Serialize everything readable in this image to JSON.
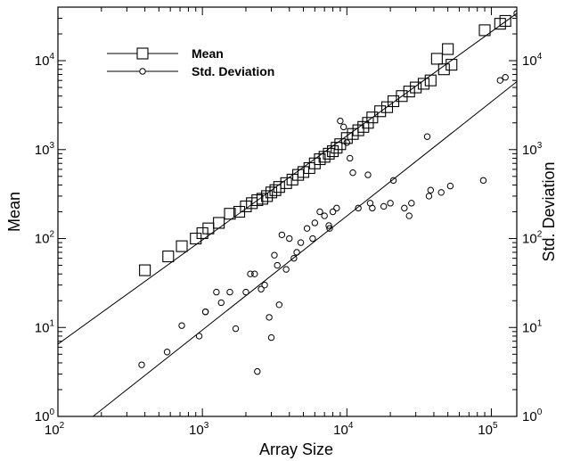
{
  "chart_data": {
    "type": "scatter",
    "x_scale": "log",
    "y_scale": "log",
    "xlabel": "Array Size",
    "ylabel_left": "Mean",
    "ylabel_right": "Std. Deviation",
    "xlim": [
      100,
      150000
    ],
    "ylim": [
      1,
      40000
    ],
    "x_ticks": [
      {
        "value": 100,
        "base": "10",
        "exp": "2"
      },
      {
        "value": 1000,
        "base": "10",
        "exp": "3"
      },
      {
        "value": 10000,
        "base": "10",
        "exp": "4"
      },
      {
        "value": 100000,
        "base": "10",
        "exp": "5"
      }
    ],
    "y_ticks": [
      {
        "value": 1,
        "base": "10",
        "exp": "0"
      },
      {
        "value": 10,
        "base": "10",
        "exp": "1"
      },
      {
        "value": 100,
        "base": "10",
        "exp": "2"
      },
      {
        "value": 1000,
        "base": "10",
        "exp": "3"
      },
      {
        "value": 10000,
        "base": "10",
        "exp": "4"
      }
    ],
    "legend": {
      "placement": "top-left",
      "entries": [
        {
          "label": "Mean",
          "marker": "square"
        },
        {
          "label": "Std. Deviation",
          "marker": "circle"
        }
      ]
    },
    "series": [
      {
        "name": "Mean",
        "marker": "square",
        "x": [
          400,
          580,
          720,
          900,
          1000,
          1100,
          1300,
          1550,
          1800,
          2000,
          2200,
          2400,
          2600,
          2800,
          3000,
          3200,
          3400,
          3800,
          4200,
          4600,
          5000,
          5500,
          6000,
          6500,
          7000,
          7500,
          8000,
          8500,
          9000,
          10000,
          11000,
          12000,
          13000,
          14000,
          15000,
          17000,
          19000,
          21000,
          24000,
          27000,
          30000,
          34000,
          38000,
          42000,
          47000,
          50000,
          53000,
          90000,
          115000,
          125000
        ],
        "y": [
          44,
          63,
          82,
          100,
          115,
          130,
          150,
          190,
          200,
          230,
          250,
          270,
          280,
          300,
          330,
          350,
          380,
          420,
          460,
          520,
          560,
          620,
          700,
          780,
          830,
          900,
          960,
          1050,
          1150,
          1350,
          1500,
          1650,
          1800,
          2000,
          2300,
          2700,
          3000,
          3500,
          4000,
          4500,
          5000,
          5500,
          6000,
          10500,
          8000,
          13500,
          9000,
          22000,
          26000,
          28000
        ]
      },
      {
        "name": "Std. Deviation",
        "marker": "circle",
        "x": [
          380,
          570,
          720,
          950,
          1050,
          1050,
          1250,
          1350,
          1550,
          1700,
          2000,
          2150,
          2300,
          2400,
          2550,
          2700,
          2900,
          3000,
          3150,
          3300,
          3400,
          3550,
          3800,
          4000,
          4300,
          4500,
          4800,
          5300,
          5800,
          6000,
          6500,
          7000,
          7500,
          7600,
          8000,
          8500,
          9000,
          9500,
          10000,
          10500,
          11000,
          12000,
          14000,
          14500,
          15000,
          18000,
          20000,
          21000,
          25000,
          27000,
          28000,
          36000,
          37000,
          38000,
          45000,
          52000,
          88000,
          115000,
          125000,
          150000
        ],
        "y": [
          3.8,
          5.3,
          10.5,
          8,
          15,
          15,
          25,
          19,
          25,
          9.7,
          25,
          40,
          40,
          3.2,
          27,
          30,
          13,
          7.7,
          65,
          50,
          18,
          110,
          45,
          100,
          60,
          70,
          90,
          130,
          100,
          150,
          200,
          180,
          140,
          130,
          200,
          220,
          2100,
          1800,
          1200,
          800,
          550,
          220,
          520,
          250,
          220,
          230,
          250,
          450,
          220,
          180,
          250,
          1400,
          300,
          350,
          330,
          390,
          450,
          6000,
          6500,
          34000
        ]
      }
    ],
    "fit_lines": [
      {
        "series": "Mean",
        "x": [
          100,
          150000
        ],
        "y": [
          6.5,
          34000
        ]
      },
      {
        "series": "Std. Deviation",
        "x": [
          175,
          150000
        ],
        "y": [
          1,
          5800
        ]
      }
    ]
  }
}
